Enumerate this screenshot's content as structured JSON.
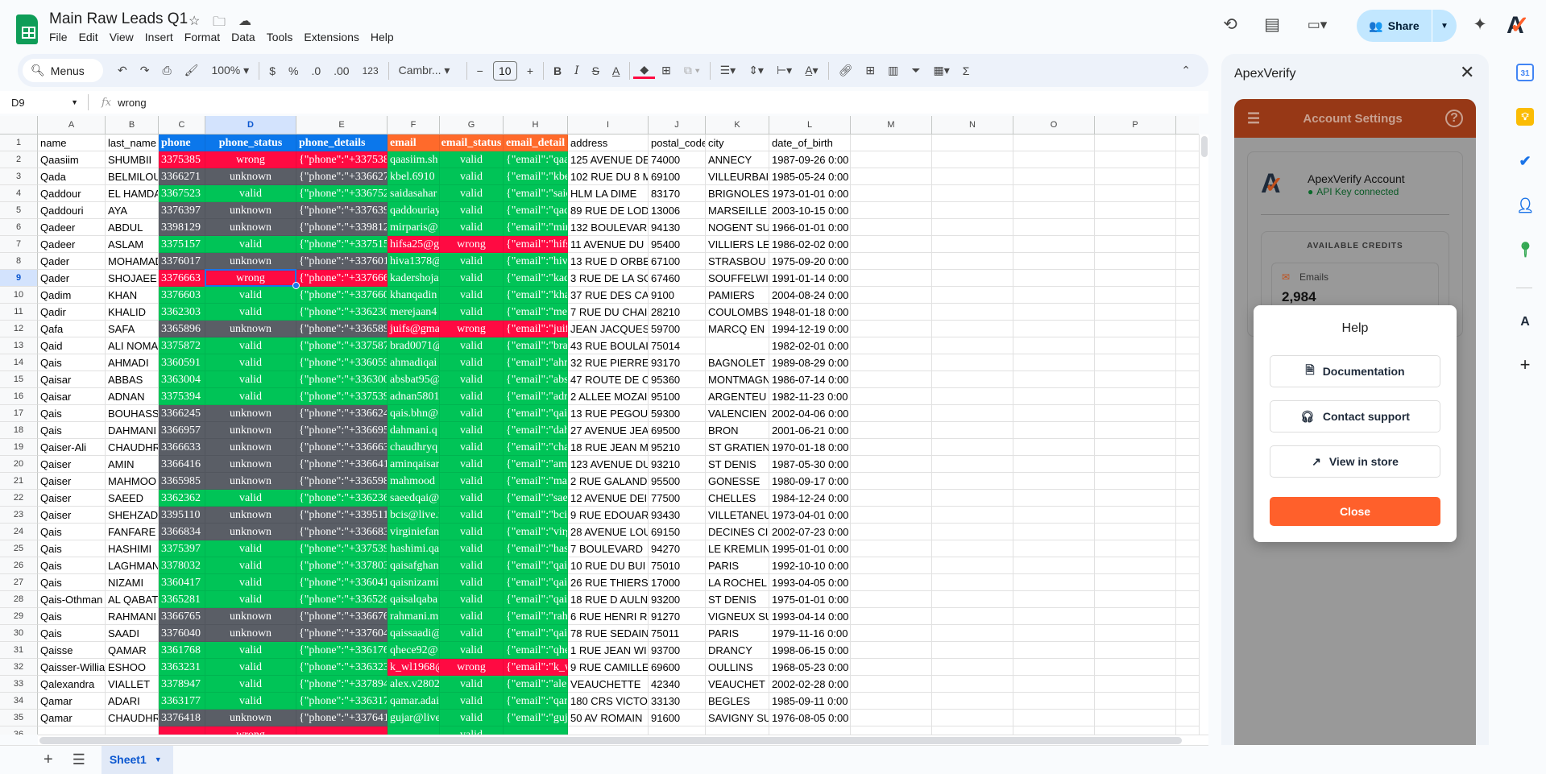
{
  "app": {
    "title": "Main Raw Leads Q1",
    "menu": [
      "File",
      "Edit",
      "View",
      "Insert",
      "Format",
      "Data",
      "Tools",
      "Extensions",
      "Help"
    ],
    "share_label": "Share"
  },
  "toolbar": {
    "search_label": "Menus",
    "zoom": "100%",
    "currency": "$",
    "percent": "%",
    "dec_decrease": ".0",
    "dec_increase": ".00",
    "number_format": "123",
    "font": "Cambr...",
    "font_size": "10"
  },
  "formula_bar": {
    "cell_ref": "D9",
    "value": "wrong"
  },
  "colors": {
    "valid": "#00c457",
    "wrong": "#ff0a42",
    "unknown": "#5a5e66",
    "phone_header": "#0b77eb",
    "email_header": "#ff6a2b",
    "accent": "#ff602b"
  },
  "sheet": {
    "columns": [
      "A",
      "B",
      "C",
      "D",
      "E",
      "F",
      "G",
      "H",
      "I",
      "J",
      "K",
      "L",
      "M",
      "N",
      "O",
      "P"
    ],
    "selected_cell": "D9",
    "headers": [
      "name",
      "last_name",
      "phone",
      "phone_status",
      "phone_details",
      "email",
      "email_status",
      "email_detail",
      "address",
      "postal_code",
      "city",
      "date_of_birth"
    ],
    "rows": [
      [
        "Qaasiim",
        "SHUMBII",
        "3375385",
        "wrong",
        "{\"phone\":\"+337538",
        "qaasiim.sh",
        "valid",
        "{\"email\":\"qaa",
        "125 AVENUE DE",
        "74000",
        "ANNECY",
        "1987-09-26 0:00"
      ],
      [
        "Qada",
        "BELMILOU",
        "3366271",
        "unknown",
        "{\"phone\":\"+336627",
        "kbel.6910",
        "valid",
        "{\"email\":\"kbe",
        "102 RUE DU 8 M",
        "69100",
        "VILLEURBAI",
        "1985-05-24 0:00"
      ],
      [
        "Qaddour",
        "EL HAMDA",
        "3367523",
        "valid",
        "{\"phone\":\"+336752",
        "saidasahar",
        "valid",
        "{\"email\":\"saic",
        "HLM LA DIME",
        "83170",
        "BRIGNOLES",
        "1973-01-01 0:00"
      ],
      [
        "Qaddouri",
        "AYA",
        "3376397",
        "unknown",
        "{\"phone\":\"+337639",
        "qaddouriay",
        "valid",
        "{\"email\":\"qad",
        "89 RUE DE LOD",
        "13006",
        "MARSEILLE",
        "2003-10-15 0:00"
      ],
      [
        "Qadeer",
        "ABDUL",
        "3398129",
        "unknown",
        "{\"phone\":\"+339812",
        "mirparis@",
        "valid",
        "{\"email\":\"mir",
        "132 BOULEVAR",
        "94130",
        "NOGENT SU",
        "1966-01-01 0:00"
      ],
      [
        "Qadeer",
        "ASLAM",
        "3375157",
        "valid",
        "{\"phone\":\"+337515",
        "hifsa25@g",
        "wrong",
        "{\"email\":\"hifs",
        "11 AVENUE DU",
        "95400",
        "VILLIERS LE",
        "1986-02-02 0:00"
      ],
      [
        "Qader",
        "MOHAMAD",
        "3376017",
        "unknown",
        "{\"phone\":\"+337601",
        "hiva1378@",
        "valid",
        "{\"email\":\"hiva",
        "13 RUE D ORBE",
        "67100",
        "STRASBOU",
        "1975-09-20 0:00"
      ],
      [
        "Qader",
        "SHOJAEE",
        "3376663",
        "wrong",
        "{\"phone\":\"+337666",
        "kadershoja",
        "valid",
        "{\"email\":\"kad",
        "3 RUE DE LA SO",
        "67460",
        "SOUFFELWI",
        "1991-01-14 0:00"
      ],
      [
        "Qadim",
        "KHAN",
        "3376603",
        "valid",
        "{\"phone\":\"+337660",
        "khanqadin",
        "valid",
        "{\"email\":\"kha",
        "37 RUE DES CA",
        "9100",
        "PAMIERS",
        "2004-08-24 0:00"
      ],
      [
        "Qadir",
        "KHALID",
        "3362303",
        "valid",
        "{\"phone\":\"+336230",
        "merejaan4",
        "valid",
        "{\"email\":\"mer",
        "7 RUE DU CHAI",
        "28210",
        "COULOMBS",
        "1948-01-18 0:00"
      ],
      [
        "Qafa",
        "SAFA",
        "3365896",
        "unknown",
        "{\"phone\":\"+336589",
        "juifs@gma",
        "wrong",
        "{\"email\":\"juif",
        "JEAN JACQUES",
        "59700",
        "MARCQ EN",
        "1994-12-19 0:00"
      ],
      [
        "Qaid",
        "ALI NOMA",
        "3375872",
        "valid",
        "{\"phone\":\"+337587",
        "brad0071@",
        "valid",
        "{\"email\":\"bra",
        "43 RUE BOULAI",
        "75014",
        "",
        "1982-02-01 0:00"
      ],
      [
        "Qais",
        "AHMADI",
        "3360591",
        "valid",
        "{\"phone\":\"+336059",
        "ahmadiqai",
        "valid",
        "{\"email\":\"ahn",
        "32 RUE PIERRE",
        "93170",
        "BAGNOLET",
        "1989-08-29 0:00"
      ],
      [
        "Qaisar",
        "ABBAS",
        "3363004",
        "valid",
        "{\"phone\":\"+336300",
        "absbat95@",
        "valid",
        "{\"email\":\"abs",
        "47 ROUTE DE C",
        "95360",
        "MONTMAGN",
        "1986-07-14 0:00"
      ],
      [
        "Qaisar",
        "ADNAN",
        "3375394",
        "valid",
        "{\"phone\":\"+337539",
        "adnan5801",
        "valid",
        "{\"email\":\"adn",
        "2 ALLEE MOZAI",
        "95100",
        "ARGENTEU",
        "1982-11-23 0:00"
      ],
      [
        "Qais",
        "BOUHASS",
        "3366245",
        "unknown",
        "{\"phone\":\"+336624",
        "qais.bhn@",
        "valid",
        "{\"email\":\"qai",
        "13 RUE PEGOU",
        "59300",
        "VALENCIEN",
        "2002-04-06 0:00"
      ],
      [
        "Qais",
        "DAHMANI",
        "3366957",
        "unknown",
        "{\"phone\":\"+336695",
        "dahmani.q",
        "valid",
        "{\"email\":\"dah",
        "27 AVENUE JEA",
        "69500",
        "BRON",
        "2001-06-21 0:00"
      ],
      [
        "Qaiser-Ali",
        "CHAUDHR",
        "3366633",
        "unknown",
        "{\"phone\":\"+336663",
        "chaudhryq",
        "valid",
        "{\"email\":\"cha",
        "18 RUE JEAN M",
        "95210",
        "ST GRATIEN",
        "1970-01-18 0:00"
      ],
      [
        "Qaiser",
        "AMIN",
        "3366416",
        "unknown",
        "{\"phone\":\"+336641",
        "aminqaisar",
        "valid",
        "{\"email\":\"ami",
        "123 AVENUE DU",
        "93210",
        "ST DENIS",
        "1987-05-30 0:00"
      ],
      [
        "Qaiser",
        "MAHMOO",
        "3365985",
        "unknown",
        "{\"phone\":\"+336598",
        "mahmood",
        "valid",
        "{\"email\":\"mal",
        "2 RUE GALAND",
        "95500",
        "GONESSE",
        "1980-09-17 0:00"
      ],
      [
        "Qaiser",
        "SAEED",
        "3362362",
        "valid",
        "{\"phone\":\"+336236",
        "saeedqai@",
        "valid",
        "{\"email\":\"sae",
        "12 AVENUE DEI",
        "77500",
        "CHELLES",
        "1984-12-24 0:00"
      ],
      [
        "Qaiser",
        "SHEHZAD",
        "3395110",
        "unknown",
        "{\"phone\":\"+339511",
        "bcis@live.f",
        "valid",
        "{\"email\":\"bcis",
        "9 RUE EDOUAR",
        "93430",
        "VILLETANEU",
        "1973-04-01 0:00"
      ],
      [
        "Qais",
        "FANFARE",
        "3366834",
        "unknown",
        "{\"phone\":\"+336683",
        "virginiefan",
        "valid",
        "{\"email\":\"virg",
        "28 AVENUE LOU",
        "69150",
        "DECINES CI",
        "2002-07-23 0:00"
      ],
      [
        "Qais",
        "HASHIMI",
        "3375397",
        "valid",
        "{\"phone\":\"+337539",
        "hashimi.qa",
        "valid",
        "{\"email\":\"has",
        "7 BOULEVARD",
        "94270",
        "LE KREMLIN",
        "1995-01-01 0:00"
      ],
      [
        "Qais",
        "LAGHMAN",
        "3378032",
        "valid",
        "{\"phone\":\"+337803",
        "qaisafghan",
        "valid",
        "{\"email\":\"qai",
        "10 RUE DU BUI",
        "75010",
        "PARIS",
        "1992-10-10 0:00"
      ],
      [
        "Qais",
        "NIZAMI",
        "3360417",
        "valid",
        "{\"phone\":\"+336041",
        "qaisnizami",
        "valid",
        "{\"email\":\"qai",
        "26 RUE THIERS",
        "17000",
        "LA ROCHEL",
        "1993-04-05 0:00"
      ],
      [
        "Qais-Othman",
        "AL QABAT",
        "3365281",
        "valid",
        "{\"phone\":\"+336528",
        "qaisalqaba",
        "valid",
        "{\"email\":\"qai",
        "18 RUE D AULN",
        "93200",
        "ST DENIS",
        "1975-01-01 0:00"
      ],
      [
        "Qais",
        "RAHMANI",
        "3366765",
        "unknown",
        "{\"phone\":\"+336676",
        "rahmani.m",
        "valid",
        "{\"email\":\"rah",
        "6 RUE HENRI R",
        "91270",
        "VIGNEUX SU",
        "1993-04-14 0:00"
      ],
      [
        "Qais",
        "SAADI",
        "3376040",
        "unknown",
        "{\"phone\":\"+337604",
        "qaissaadi@",
        "valid",
        "{\"email\":\"qai",
        "78 RUE SEDAIN",
        "75011",
        "PARIS",
        "1979-11-16 0:00"
      ],
      [
        "Qaisse",
        "QAMAR",
        "3361768",
        "valid",
        "{\"phone\":\"+336176",
        "qhece92@",
        "valid",
        "{\"email\":\"qhe",
        "1 RUE JEAN WI",
        "93700",
        "DRANCY",
        "1998-06-15 0:00"
      ],
      [
        "Qaisser-Willia",
        "ESHOO",
        "3363231",
        "valid",
        "{\"phone\":\"+336323",
        "k_wl1968@",
        "wrong",
        "{\"email\":\"k_w",
        "9 RUE CAMILLE",
        "69600",
        "OULLINS",
        "1968-05-23 0:00"
      ],
      [
        "Qalexandra",
        "VIALLET",
        "3378947",
        "valid",
        "{\"phone\":\"+337894",
        "alex.v2802",
        "valid",
        "{\"email\":\"ale",
        "VEAUCHETTE",
        "42340",
        "VEAUCHET",
        "2002-02-28 0:00"
      ],
      [
        "Qamar",
        "ADARI",
        "3363177",
        "valid",
        "{\"phone\":\"+336317",
        "qamar.adai",
        "valid",
        "{\"email\":\"qan",
        "180 CRS VICTO",
        "33130",
        "BEGLES",
        "1985-09-11 0:00"
      ],
      [
        "Qamar",
        "CHAUDHR",
        "3376418",
        "unknown",
        "{\"phone\":\"+337641",
        "gujar@live",
        "valid",
        "{\"email\":\"guj",
        "50 AV ROMAIN",
        "91600",
        "SAVIGNY SU",
        "1976-08-05 0:00"
      ],
      [
        "",
        "",
        "",
        "wrong",
        "",
        "",
        "valid",
        "",
        "",
        "",
        "",
        ""
      ]
    ],
    "tab": "Sheet1"
  },
  "panel": {
    "title": "ApexVerify",
    "header": "Account Settings",
    "account_name": "ApexVerify Account",
    "account_status": "API Key connected",
    "credits_title": "AVAILABLE CREDITS",
    "emails_label": "Emails",
    "emails_count": "2,984"
  },
  "help_modal": {
    "title": "Help",
    "buttons": [
      "Documentation",
      "Contact support",
      "View in store"
    ],
    "close": "Close"
  }
}
